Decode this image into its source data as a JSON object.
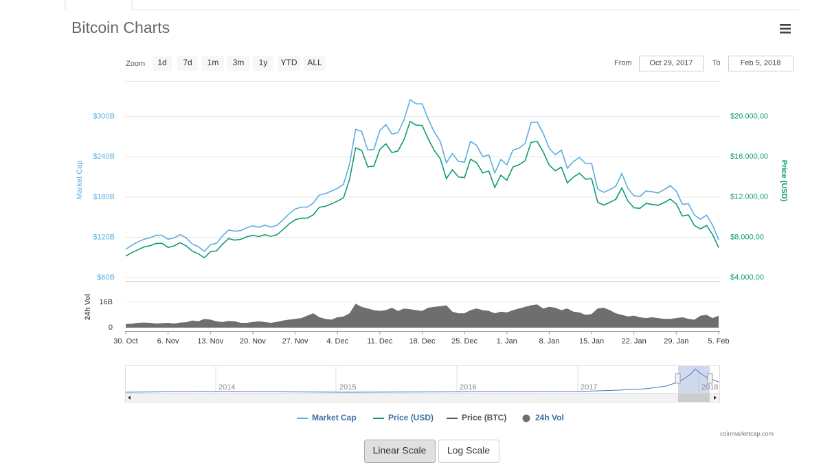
{
  "header": {
    "title": "Bitcoin Charts"
  },
  "zoom": {
    "label": "Zoom",
    "buttons": [
      "1d",
      "7d",
      "1m",
      "3m",
      "1y",
      "YTD",
      "ALL"
    ]
  },
  "range": {
    "from_label": "From",
    "from": "Oct 29, 2017",
    "to_label": "To",
    "to": "Feb 5, 2018"
  },
  "chart_data": {
    "type": "line",
    "x": [
      "2017-10-30",
      "2017-10-31",
      "2017-11-01",
      "2017-11-02",
      "2017-11-03",
      "2017-11-04",
      "2017-11-05",
      "2017-11-06",
      "2017-11-07",
      "2017-11-08",
      "2017-11-09",
      "2017-11-10",
      "2017-11-11",
      "2017-11-12",
      "2017-11-13",
      "2017-11-14",
      "2017-11-15",
      "2017-11-16",
      "2017-11-17",
      "2017-11-18",
      "2017-11-19",
      "2017-11-20",
      "2017-11-21",
      "2017-11-22",
      "2017-11-23",
      "2017-11-24",
      "2017-11-25",
      "2017-11-26",
      "2017-11-27",
      "2017-11-28",
      "2017-11-29",
      "2017-11-30",
      "2017-12-01",
      "2017-12-02",
      "2017-12-03",
      "2017-12-04",
      "2017-12-05",
      "2017-12-06",
      "2017-12-07",
      "2017-12-08",
      "2017-12-09",
      "2017-12-10",
      "2017-12-11",
      "2017-12-12",
      "2017-12-13",
      "2017-12-14",
      "2017-12-15",
      "2017-12-16",
      "2017-12-17",
      "2017-12-18",
      "2017-12-19",
      "2017-12-20",
      "2017-12-21",
      "2017-12-22",
      "2017-12-23",
      "2017-12-24",
      "2017-12-25",
      "2017-12-26",
      "2017-12-27",
      "2017-12-28",
      "2017-12-29",
      "2017-12-30",
      "2017-12-31",
      "2018-01-01",
      "2018-01-02",
      "2018-01-03",
      "2018-01-04",
      "2018-01-05",
      "2018-01-06",
      "2018-01-07",
      "2018-01-08",
      "2018-01-09",
      "2018-01-10",
      "2018-01-11",
      "2018-01-12",
      "2018-01-13",
      "2018-01-14",
      "2018-01-15",
      "2018-01-16",
      "2018-01-17",
      "2018-01-18",
      "2018-01-19",
      "2018-01-20",
      "2018-01-21",
      "2018-01-22",
      "2018-01-23",
      "2018-01-24",
      "2018-01-25",
      "2018-01-26",
      "2018-01-27",
      "2018-01-28",
      "2018-01-29",
      "2018-01-30",
      "2018-01-31",
      "2018-02-01",
      "2018-02-02",
      "2018-02-03",
      "2018-02-04",
      "2018-02-05"
    ],
    "xlim": [
      "2017-10-30",
      "2018-02-05"
    ],
    "xticks": [
      {
        "value": "2017-10-30",
        "label": "30. Oct"
      },
      {
        "value": "2017-11-06",
        "label": "6. Nov"
      },
      {
        "value": "2017-11-13",
        "label": "13. Nov"
      },
      {
        "value": "2017-11-20",
        "label": "20. Nov"
      },
      {
        "value": "2017-11-27",
        "label": "27. Nov"
      },
      {
        "value": "2017-12-04",
        "label": "4. Dec"
      },
      {
        "value": "2017-12-11",
        "label": "11. Dec"
      },
      {
        "value": "2017-12-18",
        "label": "18. Dec"
      },
      {
        "value": "2017-12-25",
        "label": "25. Dec"
      },
      {
        "value": "2018-01-01",
        "label": "1. Jan"
      },
      {
        "value": "2018-01-08",
        "label": "8. Jan"
      },
      {
        "value": "2018-01-15",
        "label": "15. Jan"
      },
      {
        "value": "2018-01-22",
        "label": "22. Jan"
      },
      {
        "value": "2018-01-29",
        "label": "29. Jan"
      },
      {
        "value": "2018-02-05",
        "label": "5. Feb"
      }
    ],
    "ylabel": "Market Cap",
    "y2label": "Price (USD)",
    "ylim": [
      60,
      353
    ],
    "yticks": [
      {
        "value": 60,
        "label": "$60B"
      },
      {
        "value": 120,
        "label": "$120B"
      },
      {
        "value": 180,
        "label": "$180B"
      },
      {
        "value": 240,
        "label": "$240B"
      },
      {
        "value": 300,
        "label": "$300B"
      }
    ],
    "y2lim": [
      4000,
      23520
    ],
    "y2ticks": [
      {
        "value": 4000,
        "label": "$4.000,00"
      },
      {
        "value": 8000,
        "label": "$8.000,00"
      },
      {
        "value": 12000,
        "label": "$12.000,00"
      },
      {
        "value": 16000,
        "label": "$16.000,00"
      },
      {
        "value": 20000,
        "label": "$20.000,00"
      }
    ],
    "grid": true,
    "series": [
      {
        "name": "Market Cap",
        "color": "#5aaee0",
        "values": [
          102,
          108,
          113,
          117,
          119,
          123,
          123,
          117,
          119,
          124,
          119,
          110,
          106,
          99,
          109,
          111,
          122,
          131,
          129,
          130,
          134,
          137,
          135,
          138,
          135,
          138,
          146,
          155,
          162,
          165,
          165,
          171,
          183,
          185,
          189,
          193,
          199,
          229,
          281,
          278,
          250,
          251,
          279,
          288,
          274,
          276,
          295,
          325,
          319,
          319,
          296,
          277,
          263,
          231,
          245,
          233,
          232,
          263,
          257,
          240,
          243,
          216,
          236,
          228,
          250,
          253,
          260,
          291,
          292,
          275,
          253,
          243,
          250,
          223,
          233,
          239,
          230,
          230,
          192,
          187,
          191,
          196,
          215,
          193,
          182,
          181,
          189,
          188,
          186,
          191,
          197,
          189,
          169,
          170,
          153,
          147,
          153,
          138,
          116
        ]
      },
      {
        "name": "Price (USD)",
        "color": "#0d9b70",
        "axis": "y2",
        "values": [
          6130,
          6470,
          6750,
          7030,
          7150,
          7380,
          7400,
          6990,
          7140,
          7460,
          7140,
          6620,
          6360,
          5950,
          6560,
          6640,
          7310,
          7870,
          7710,
          7790,
          8040,
          8200,
          8070,
          8250,
          8090,
          8250,
          8760,
          9320,
          9730,
          9900,
          9890,
          10230,
          10980,
          11070,
          11320,
          11590,
          11920,
          13750,
          16870,
          16650,
          15000,
          15060,
          16730,
          17280,
          16410,
          16570,
          17710,
          19500,
          19140,
          19110,
          17780,
          16620,
          15800,
          13830,
          14700,
          14000,
          13920,
          15750,
          15400,
          14390,
          14580,
          12950,
          14160,
          13660,
          14980,
          15200,
          15600,
          17430,
          17530,
          16480,
          15170,
          14600,
          14970,
          13400,
          13980,
          14360,
          13770,
          13820,
          11490,
          11190,
          11470,
          11760,
          12900,
          11600,
          10930,
          10870,
          11360,
          11260,
          11170,
          11440,
          11790,
          11310,
          10110,
          10220,
          9170,
          8830,
          9170,
          8280,
          6960
        ]
      },
      {
        "name": "Price (BTC)",
        "color": "#555555"
      },
      {
        "name": "24h Vol",
        "color": "#6e6e6e",
        "axis": "y3",
        "values": [
          2.2,
          2.4,
          3.0,
          3.2,
          3.0,
          2.6,
          2.8,
          3.0,
          2.6,
          3.2,
          3.4,
          4.5,
          4.0,
          5.5,
          5.0,
          4.0,
          3.5,
          4.2,
          4.0,
          3.0,
          3.0,
          3.5,
          4.0,
          3.5,
          3.0,
          3.6,
          4.5,
          5.0,
          5.5,
          6.0,
          7.5,
          9.0,
          6.5,
          5.5,
          5.0,
          6.5,
          7.0,
          9.0,
          15.0,
          13.0,
          12.0,
          11.0,
          10.5,
          11.0,
          12.5,
          10.5,
          12.0,
          11.5,
          11.0,
          10.5,
          12.5,
          13.0,
          13.5,
          14.0,
          10.0,
          9.0,
          9.0,
          11.0,
          12.0,
          11.0,
          10.5,
          9.0,
          10.0,
          9.5,
          11.0,
          12.0,
          13.0,
          14.0,
          14.5,
          12.0,
          13.0,
          12.5,
          11.0,
          12.0,
          10.0,
          9.5,
          8.0,
          8.5,
          12.0,
          12.5,
          11.0,
          9.0,
          8.0,
          7.0,
          7.5,
          6.5,
          6.0,
          6.5,
          6.0,
          5.5,
          5.5,
          6.0,
          6.5,
          5.5,
          5.0,
          7.5,
          8.0,
          6.0,
          7.5
        ]
      }
    ],
    "volume_axis": {
      "label": "24h Vol",
      "lim": [
        0,
        28
      ],
      "ticks": [
        0,
        {
          "value": 16,
          "label": "16B"
        }
      ]
    }
  },
  "navigator": {
    "labels": [
      "2014",
      "2015",
      "2016",
      "2017",
      "2018"
    ]
  },
  "credit": "coinmarketcap.com",
  "scale_buttons": [
    "Linear Scale",
    "Log Scale"
  ]
}
